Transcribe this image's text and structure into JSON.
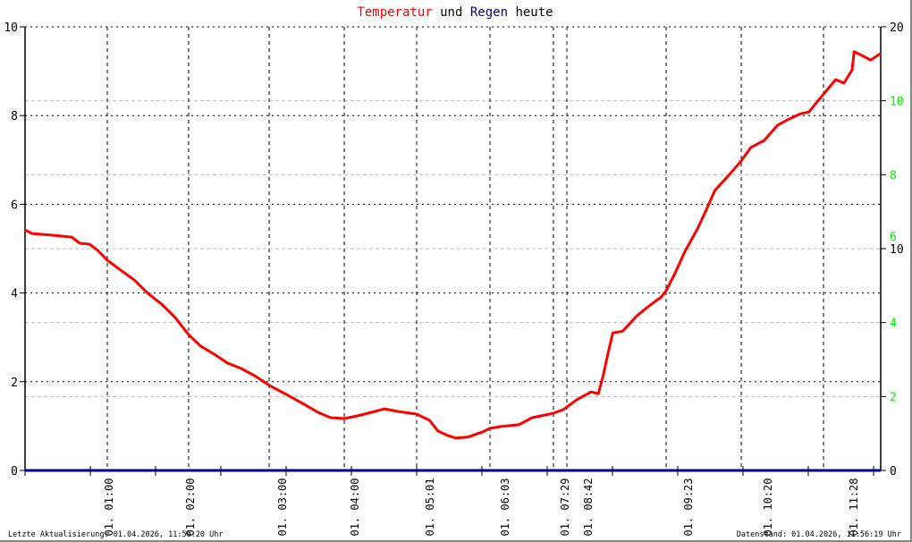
{
  "chart_data": {
    "type": "line",
    "title": {
      "parts": [
        {
          "text": "Temperatur",
          "color": "#ff0000"
        },
        {
          "text": " und ",
          "color": "#000000"
        },
        {
          "text": "Regen",
          "color": "#000080"
        },
        {
          "text": " heute",
          "color": "#000000"
        }
      ]
    },
    "x_tick_labels": [
      "01. 01:00",
      "01. 02:00",
      "01. 03:00",
      "01. 04:00",
      "01. 05:01",
      "01. 06:03",
      "01. 07:29",
      "01. 08:42",
      "01. 09:23",
      "01. 10:20",
      "01. 11:28"
    ],
    "y_left": {
      "range": [
        0,
        10
      ],
      "ticks": [
        0,
        2,
        4,
        6,
        8,
        10
      ],
      "color": "#000000"
    },
    "y_right": {
      "range": [
        0,
        20
      ],
      "ticks": [
        0,
        10,
        20
      ],
      "color": "#000000"
    },
    "y_right_secondary": {
      "range": [
        0,
        12
      ],
      "ticks": [
        2,
        4,
        6,
        8,
        10
      ],
      "color": "#00ee00"
    },
    "grid": true,
    "series": [
      {
        "name": "Temperatur",
        "color": "#ff0000",
        "axis": "left",
        "points": [
          [
            "00:00",
            5.42
          ],
          [
            "00:05",
            5.34
          ],
          [
            "00:21",
            5.3
          ],
          [
            "00:34",
            5.26
          ],
          [
            "00:40",
            5.12
          ],
          [
            "00:47",
            5.1
          ],
          [
            "00:53",
            4.96
          ],
          [
            "01:00",
            4.74
          ],
          [
            "01:07",
            4.58
          ],
          [
            "01:20",
            4.29
          ],
          [
            "01:30",
            3.99
          ],
          [
            "01:40",
            3.75
          ],
          [
            "01:50",
            3.45
          ],
          [
            "02:00",
            3.06
          ],
          [
            "02:09",
            2.8
          ],
          [
            "02:19",
            2.62
          ],
          [
            "02:29",
            2.42
          ],
          [
            "02:39",
            2.3
          ],
          [
            "02:49",
            2.14
          ],
          [
            "03:00",
            1.92
          ],
          [
            "03:14",
            1.71
          ],
          [
            "03:28",
            1.49
          ],
          [
            "03:39",
            1.31
          ],
          [
            "03:49",
            1.19
          ],
          [
            "04:00",
            1.17
          ],
          [
            "04:11",
            1.23
          ],
          [
            "04:23",
            1.31
          ],
          [
            "04:34",
            1.39
          ],
          [
            "04:45",
            1.33
          ],
          [
            "05:01",
            1.27
          ],
          [
            "05:12",
            1.13
          ],
          [
            "05:19",
            0.89
          ],
          [
            "05:27",
            0.79
          ],
          [
            "05:34",
            0.73
          ],
          [
            "05:44",
            0.75
          ],
          [
            "05:57",
            0.87
          ],
          [
            "06:03",
            0.95
          ],
          [
            "06:18",
            0.99
          ],
          [
            "06:42",
            1.03
          ],
          [
            "07:00",
            1.19
          ],
          [
            "07:18",
            1.25
          ],
          [
            "07:29",
            1.29
          ],
          [
            "08:22",
            1.37
          ],
          [
            "08:42",
            1.43
          ],
          [
            "08:46",
            1.59
          ],
          [
            "08:52",
            1.77
          ],
          [
            "08:55",
            1.73
          ],
          [
            "08:57",
            2.14
          ],
          [
            "08:59",
            2.64
          ],
          [
            "09:01",
            3.1
          ],
          [
            "09:05",
            3.14
          ],
          [
            "09:08",
            3.31
          ],
          [
            "09:11",
            3.49
          ],
          [
            "09:16",
            3.71
          ],
          [
            "09:21",
            3.91
          ],
          [
            "09:23",
            4.05
          ],
          [
            "09:30",
            4.46
          ],
          [
            "09:37",
            4.92
          ],
          [
            "09:47",
            5.46
          ],
          [
            "09:54",
            5.91
          ],
          [
            "10:00",
            6.31
          ],
          [
            "10:11",
            6.67
          ],
          [
            "10:20",
            6.98
          ],
          [
            "10:28",
            7.28
          ],
          [
            "10:39",
            7.44
          ],
          [
            "10:50",
            7.78
          ],
          [
            "10:58",
            7.9
          ],
          [
            "11:09",
            8.04
          ],
          [
            "11:16",
            8.08
          ],
          [
            "11:24",
            8.35
          ],
          [
            "11:30",
            8.59
          ],
          [
            "11:34",
            8.81
          ],
          [
            "11:38",
            8.73
          ],
          [
            "11:42",
            9.03
          ],
          [
            "11:43",
            9.44
          ],
          [
            "11:47",
            9.35
          ],
          [
            "11:51",
            9.25
          ],
          [
            "11:56",
            9.4
          ]
        ]
      },
      {
        "name": "Regen",
        "color": "#000080",
        "axis": "right",
        "points": [
          [
            "00:00",
            0
          ],
          [
            "11:56",
            0
          ]
        ]
      }
    ]
  },
  "footer": {
    "last_update": "Letzte Aktualisierung: 01.04.2026, 11:56:20 Uhr",
    "data_status": "Datenstand: 01.04.2026, 11:56:19 Uhr"
  }
}
